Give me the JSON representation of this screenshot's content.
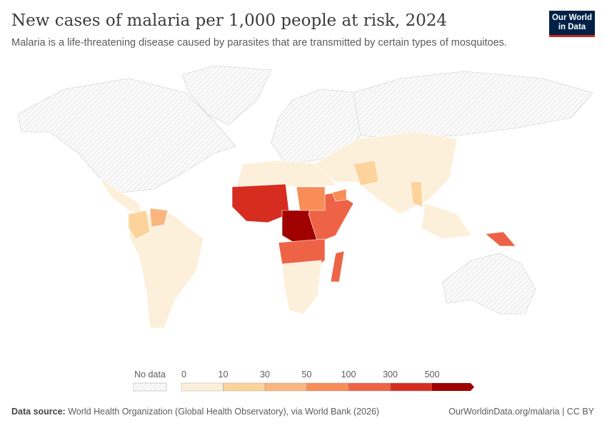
{
  "header": {
    "title": "New cases of malaria per 1,000 people at risk, 2024",
    "subtitle": "Malaria is a life-threatening disease caused by parasites that are transmitted by certain types of mosquitoes.",
    "logo": "Our World in Data"
  },
  "footer": {
    "source_label": "Data source:",
    "source": "World Health Organization (Global Health Observatory), via World Bank (2026)",
    "link": "OurWorldinData.org/malaria | CC BY"
  },
  "chart_data": {
    "type": "map",
    "title": "New cases of malaria per 1,000 people at risk, 2024",
    "legend": {
      "no_data_label": "No data",
      "no_data_pattern": "hatched",
      "bins": [
        0,
        10,
        30,
        50,
        100,
        300,
        500
      ],
      "tick_labels": [
        "0",
        "10",
        "30",
        "50",
        "100",
        "300",
        "500"
      ],
      "colors": [
        "#fdf0db",
        "#fcd39b",
        "#fbb57e",
        "#f88d58",
        "#ee6346",
        "#d62d20",
        "#a00000"
      ],
      "placement": "bottom"
    },
    "regions": [
      {
        "name": "North America",
        "bin": "no data"
      },
      {
        "name": "Greenland",
        "bin": "no data"
      },
      {
        "name": "Europe",
        "bin": "no data"
      },
      {
        "name": "Russia",
        "bin": "no data"
      },
      {
        "name": "Australia",
        "bin": "no data"
      },
      {
        "name": "Central America",
        "bin": "0-10"
      },
      {
        "name": "South America",
        "bin": "0-10"
      },
      {
        "name": "Colombia",
        "bin": "10-30"
      },
      {
        "name": "Venezuela",
        "bin": "30-50"
      },
      {
        "name": "North Africa",
        "bin": "0-10"
      },
      {
        "name": "West Africa",
        "bin": "300-500"
      },
      {
        "name": "Central Africa",
        "bin": "500+"
      },
      {
        "name": "East Africa",
        "bin": "100-300"
      },
      {
        "name": "Sudan",
        "bin": "50-100"
      },
      {
        "name": "Southern Africa",
        "bin": "100-300"
      },
      {
        "name": "South Africa",
        "bin": "0-10"
      },
      {
        "name": "Madagascar",
        "bin": "100-300"
      },
      {
        "name": "Middle East and Asia",
        "bin": "0-10"
      },
      {
        "name": "Afghanistan and Pakistan",
        "bin": "10-30"
      },
      {
        "name": "Myanmar",
        "bin": "10-30"
      },
      {
        "name": "Yemen",
        "bin": "50-100"
      },
      {
        "name": "Southeast Asia",
        "bin": "0-10"
      },
      {
        "name": "Papua New Guinea",
        "bin": "100-300"
      }
    ]
  }
}
